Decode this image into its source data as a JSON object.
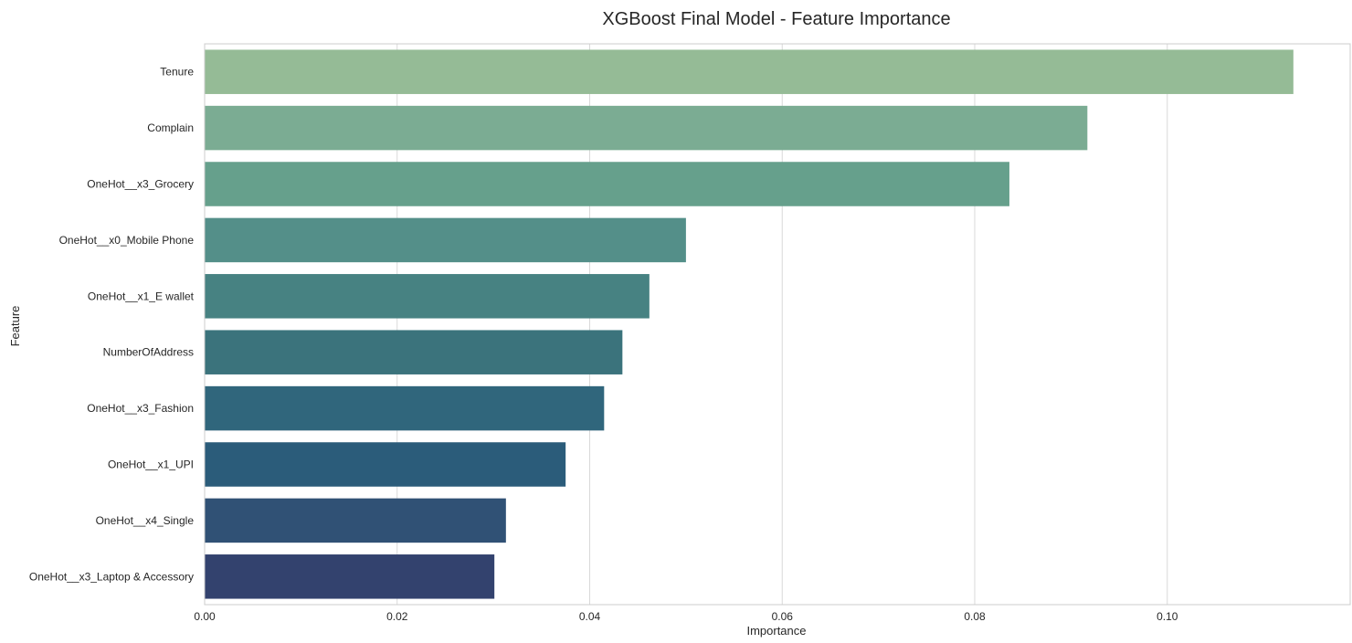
{
  "chart_data": {
    "type": "bar",
    "orientation": "horizontal",
    "title": "XGBoost Final Model - Feature Importance",
    "xlabel": "Importance",
    "ylabel": "Feature",
    "xlim": [
      0,
      0.119
    ],
    "xticks": [
      "0.00",
      "0.02",
      "0.04",
      "0.06",
      "0.08",
      "0.10"
    ],
    "grid": true,
    "categories": [
      "Tenure",
      "Complain",
      "OneHot__x3_Grocery",
      "OneHot__x0_Mobile Phone",
      "OneHot__x1_E wallet",
      "NumberOfAddress",
      "OneHot__x3_Fashion",
      "OneHot__x1_UPI",
      "OneHot__x4_Single",
      "OneHot__x3_Laptop & Accessory"
    ],
    "values": [
      0.1131,
      0.0917,
      0.0836,
      0.05,
      0.0462,
      0.0434,
      0.0415,
      0.0375,
      0.0313,
      0.0301
    ],
    "colors": [
      "#95bb96",
      "#7bac93",
      "#66a08c",
      "#548f89",
      "#478282",
      "#3b737c",
      "#30667c",
      "#2b5c7a",
      "#305175",
      "#33426e"
    ]
  }
}
